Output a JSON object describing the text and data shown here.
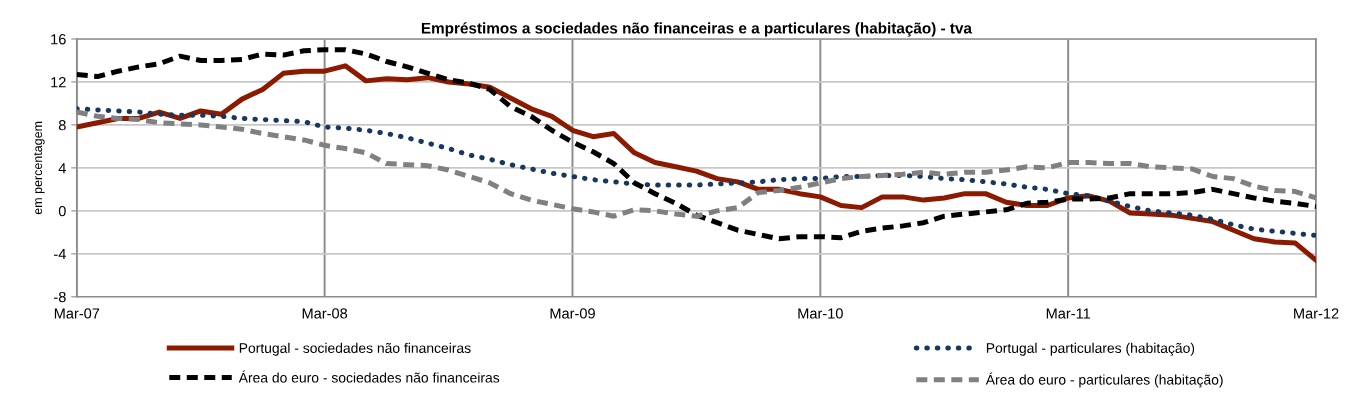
{
  "chart_data": {
    "type": "line",
    "title": "Empréstimos a sociedades não financeiras e a particulares (habitação) - tva",
    "ylabel": "em percentagem",
    "x": [
      "2007-03",
      "2007-04",
      "2007-05",
      "2007-06",
      "2007-07",
      "2007-08",
      "2007-09",
      "2007-10",
      "2007-11",
      "2007-12",
      "2008-01",
      "2008-02",
      "2008-03",
      "2008-04",
      "2008-05",
      "2008-06",
      "2008-07",
      "2008-08",
      "2008-09",
      "2008-10",
      "2008-11",
      "2008-12",
      "2009-01",
      "2009-02",
      "2009-03",
      "2009-04",
      "2009-05",
      "2009-06",
      "2009-07",
      "2009-08",
      "2009-09",
      "2009-10",
      "2009-11",
      "2009-12",
      "2010-01",
      "2010-02",
      "2010-03",
      "2010-04",
      "2010-05",
      "2010-06",
      "2010-07",
      "2010-08",
      "2010-09",
      "2010-10",
      "2010-11",
      "2010-12",
      "2011-01",
      "2011-02",
      "2011-03",
      "2011-04",
      "2011-05",
      "2011-06",
      "2011-07",
      "2011-08",
      "2011-09",
      "2011-10",
      "2011-11",
      "2011-12",
      "2012-01",
      "2012-02",
      "2012-03"
    ],
    "series": [
      {
        "name": "Portugal - sociedades não financeiras",
        "color": "#8b1a00",
        "line_style": "solid",
        "values": [
          7.8,
          8.2,
          8.6,
          8.6,
          9.2,
          8.6,
          9.3,
          9.0,
          10.4,
          11.3,
          12.8,
          13.0,
          13.0,
          13.5,
          12.1,
          12.3,
          12.2,
          12.4,
          12.0,
          11.8,
          11.5,
          10.5,
          9.5,
          8.8,
          7.5,
          6.9,
          7.2,
          5.4,
          4.5,
          4.1,
          3.7,
          3.0,
          2.7,
          2.0,
          2.0,
          1.6,
          1.3,
          0.5,
          0.3,
          1.3,
          1.3,
          1.0,
          1.2,
          1.6,
          1.6,
          0.8,
          0.5,
          0.5,
          1.2,
          1.4,
          0.9,
          -0.2,
          -0.3,
          -0.4,
          -0.7,
          -1.0,
          -1.8,
          -2.6,
          -2.9,
          -3.0,
          -4.6
        ]
      },
      {
        "name": "Portugal - particulares (habitação)",
        "color": "#17375e",
        "line_style": "dotted",
        "values": [
          9.5,
          9.4,
          9.3,
          9.2,
          9.0,
          8.9,
          8.9,
          8.8,
          8.6,
          8.5,
          8.4,
          8.3,
          7.8,
          7.7,
          7.5,
          7.2,
          6.8,
          6.3,
          5.8,
          5.2,
          4.8,
          4.3,
          3.9,
          3.5,
          3.2,
          2.9,
          2.7,
          2.5,
          2.4,
          2.4,
          2.4,
          2.5,
          2.6,
          2.7,
          2.9,
          3.0,
          3.0,
          3.2,
          3.2,
          3.3,
          3.3,
          3.2,
          3.0,
          2.9,
          2.7,
          2.5,
          2.2,
          2.0,
          1.6,
          1.4,
          0.9,
          0.4,
          0.0,
          -0.2,
          -0.4,
          -0.8,
          -1.3,
          -1.7,
          -1.9,
          -2.1,
          -2.3
        ]
      },
      {
        "name": "Área do euro - sociedades não financeiras",
        "color": "#000000",
        "line_style": "dashed",
        "values": [
          12.7,
          12.5,
          13.0,
          13.4,
          13.7,
          14.4,
          14.0,
          14.0,
          14.1,
          14.6,
          14.5,
          14.9,
          15.0,
          15.0,
          14.6,
          13.9,
          13.4,
          12.8,
          12.2,
          11.9,
          11.3,
          9.7,
          8.8,
          7.5,
          6.4,
          5.5,
          4.4,
          2.6,
          1.6,
          0.7,
          -0.4,
          -1.1,
          -1.8,
          -2.2,
          -2.6,
          -2.4,
          -2.4,
          -2.5,
          -1.9,
          -1.6,
          -1.4,
          -1.1,
          -0.5,
          -0.3,
          -0.1,
          0.1,
          0.7,
          0.8,
          1.1,
          1.1,
          1.2,
          1.6,
          1.6,
          1.6,
          1.7,
          2.0,
          1.6,
          1.2,
          0.9,
          0.7,
          0.4
        ]
      },
      {
        "name": "Área do euro - particulares (habitação)",
        "color": "#808080",
        "line_style": "dashed",
        "values": [
          9.2,
          8.8,
          8.6,
          8.5,
          8.2,
          8.1,
          8.0,
          7.8,
          7.6,
          7.2,
          6.9,
          6.6,
          6.1,
          5.8,
          5.4,
          4.4,
          4.3,
          4.2,
          3.8,
          3.2,
          2.6,
          1.6,
          1.0,
          0.6,
          0.2,
          -0.1,
          -0.5,
          0.1,
          0.0,
          -0.3,
          -0.5,
          0.0,
          0.3,
          1.7,
          1.9,
          2.2,
          2.6,
          3.0,
          3.2,
          3.3,
          3.4,
          3.6,
          3.4,
          3.6,
          3.6,
          3.8,
          4.1,
          4.0,
          4.5,
          4.5,
          4.4,
          4.4,
          4.1,
          4.0,
          3.9,
          3.2,
          3.0,
          2.3,
          1.9,
          1.8,
          1.2
        ]
      }
    ],
    "xlim": [
      "2007-03",
      "2012-03"
    ],
    "xticks": [
      {
        "value": "2007-03",
        "label": "Mar-07"
      },
      {
        "value": "2008-03",
        "label": "Mar-08"
      },
      {
        "value": "2009-03",
        "label": "Mar-09"
      },
      {
        "value": "2010-03",
        "label": "Mar-10"
      },
      {
        "value": "2011-03",
        "label": "Mar-11"
      },
      {
        "value": "2012-03",
        "label": "Mar-12"
      }
    ],
    "ylim": [
      -8,
      16
    ],
    "yticks": [
      -8,
      -4,
      0,
      4,
      8,
      12,
      16
    ],
    "grid": true,
    "legend": "bottom",
    "marker": "none"
  }
}
